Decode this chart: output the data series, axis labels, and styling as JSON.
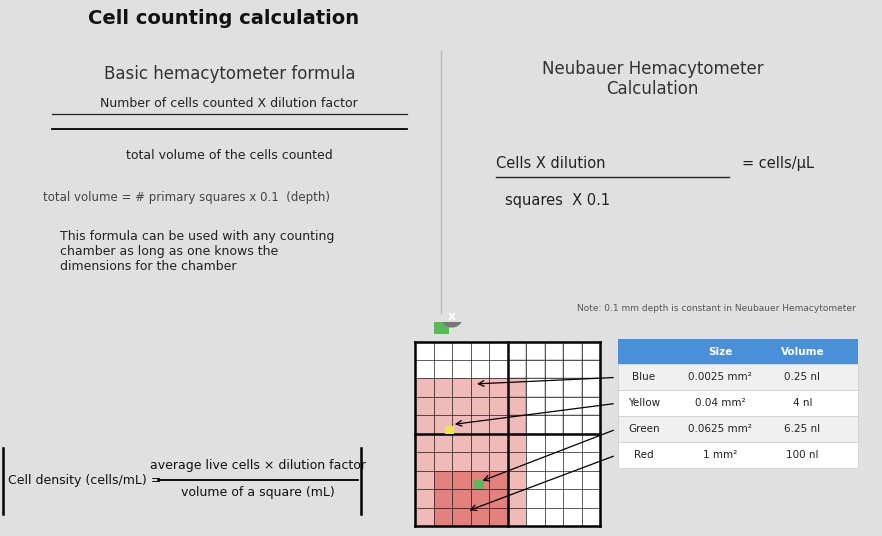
{
  "title": "Cell counting calculation",
  "title_fontsize": 14,
  "title_fontweight": "bold",
  "bg_color": "#f0f0f0",
  "panel1_title": "Basic hemacytometer formula",
  "panel2_title": "Neubauer Hemacytometer\nCalculation",
  "formula_numerator": "Number of cells counted X dilution factor",
  "formula_denominator": "total volume of the cells counted",
  "total_volume_text": "total volume = # primary squares x 0.1  (depth)",
  "this_formula_text": "This formula can be used with any counting\nchamber as long as one knows the\ndimensions for the chamber",
  "cells_x_dilution_num": "Cells X dilution",
  "cells_x_dilution_den": "squares  X 0.1",
  "cells_result": "= cells/μL",
  "note_text": "Note: 0.1 mm depth is constant in Neubauer Hemacytometer",
  "cell_density_left": "Cell density (cells/mL) = ",
  "cell_density_num": "average live cells × dilution factor",
  "cell_density_den": "volume of a square (mL)",
  "table_headers": [
    "",
    "Size",
    "Volume"
  ],
  "table_rows": [
    [
      "Blue",
      "0.0025 mm²",
      "0.25 nl"
    ],
    [
      "Yellow",
      "0.04 mm²",
      "4 nl"
    ],
    [
      "Green",
      "0.0625 mm²",
      "6.25 nl"
    ],
    [
      "Red",
      "1 mm²",
      "100 nl"
    ]
  ],
  "table_header_color": "#4a90d9",
  "grid_color_red": "#d9534f",
  "grid_color_green": "#5cb85c",
  "grid_color_yellow": "#e8e840",
  "close_btn_color": "#888888"
}
